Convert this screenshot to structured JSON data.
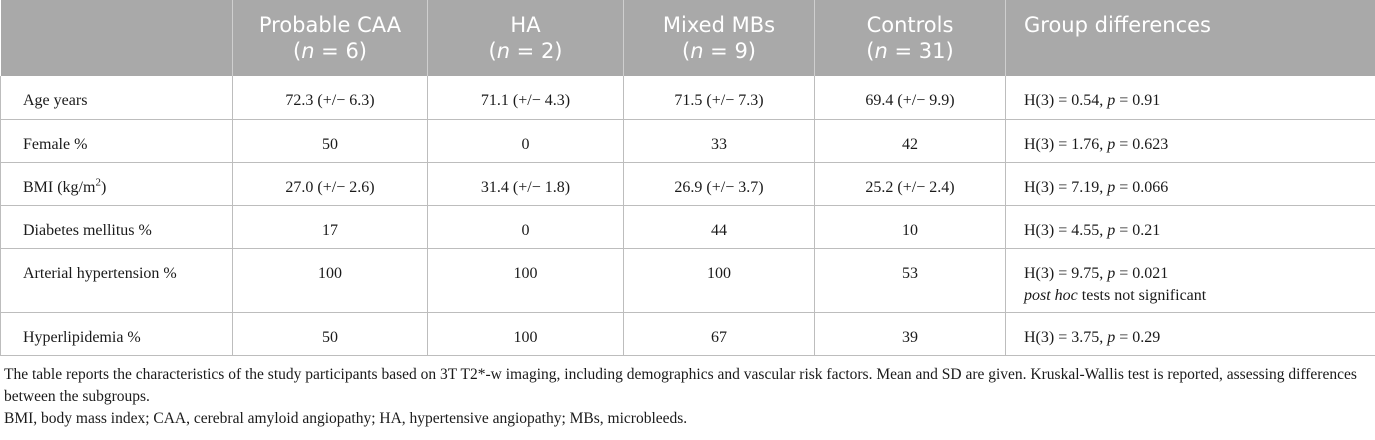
{
  "table": {
    "header": {
      "col0": "",
      "columns": [
        {
          "name": "Probable CAA",
          "n_prefix": "(",
          "n_var": "n",
          "n_eq": " = 6)"
        },
        {
          "name": "HA",
          "n_prefix": "(",
          "n_var": "n",
          "n_eq": " = 2)"
        },
        {
          "name": "Mixed MBs",
          "n_prefix": "(",
          "n_var": "n",
          "n_eq": " = 9)"
        },
        {
          "name": "Controls",
          "n_prefix": "(",
          "n_var": "n",
          "n_eq": " = 31)"
        }
      ],
      "last": "Group differences"
    },
    "rows": [
      {
        "label": "Age years",
        "values": [
          "72.3 (+/− 6.3)",
          "71.1 (+/− 4.3)",
          "71.5 (+/− 7.3)",
          "69.4 (+/− 9.9)"
        ],
        "stat": "H(3) = 0.54, ",
        "p_label": "p",
        "p_value": " = 0.91",
        "note": ""
      },
      {
        "label": "Female %",
        "values": [
          "50",
          "0",
          "33",
          "42"
        ],
        "stat": "H(3) = 1.76, ",
        "p_label": "p",
        "p_value": " = 0.623",
        "note": ""
      },
      {
        "label": "BMI (kg/m",
        "label_sup": "2",
        "label_suffix": ")",
        "values": [
          "27.0 (+/− 2.6)",
          "31.4 (+/− 1.8)",
          "26.9 (+/− 3.7)",
          "25.2 (+/− 2.4)"
        ],
        "stat": "H(3) = 7.19, ",
        "p_label": "p",
        "p_value": " = 0.066",
        "note": ""
      },
      {
        "label": "Diabetes mellitus %",
        "values": [
          "17",
          "0",
          "44",
          "10"
        ],
        "stat": "H(3) = 4.55, ",
        "p_label": "p",
        "p_value": " = 0.21",
        "note": ""
      },
      {
        "label": "Arterial hypertension %",
        "values": [
          "100",
          "100",
          "100",
          "53"
        ],
        "stat": "H(3) = 9.75, ",
        "p_label": "p",
        "p_value": " = 0.021",
        "note_italic": "post hoc",
        "note_rest": " tests not significant"
      },
      {
        "label": "Hyperlipidemia %",
        "values": [
          "50",
          "100",
          "67",
          "39"
        ],
        "stat": "H(3) = 3.75, ",
        "p_label": "p",
        "p_value": " = 0.29",
        "note": ""
      }
    ]
  },
  "footnotes": {
    "line1": "The table reports the characteristics of the study participants based on 3T T2*-w imaging, including demographics and vascular risk factors. Mean and SD are given. Kruskal-Wallis test is reported, assessing differences between the subgroups.",
    "line2": "BMI, body mass index; CAA, cerebral amyloid angiopathy; HA, hypertensive angiopathy; MBs, microbleeds."
  }
}
